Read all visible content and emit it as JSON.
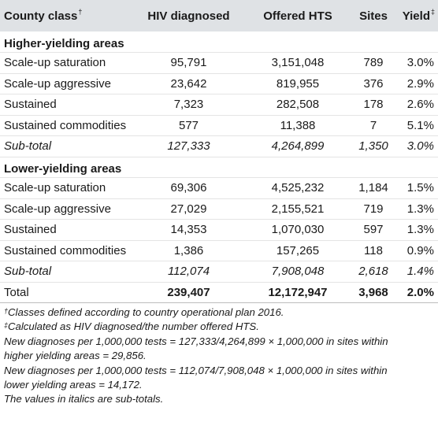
{
  "table": {
    "columns": [
      "County class",
      "HIV diagnosed",
      "Offered HTS",
      "Sites",
      "Yield"
    ],
    "column_marks": {
      "county_class": "†",
      "yield": "‡"
    },
    "sections": [
      {
        "title": "Higher-yielding areas",
        "rows": [
          {
            "name": "Scale-up saturation",
            "hiv": "95,791",
            "hts": "3,151,048",
            "sites": "789",
            "yield": "3.0%"
          },
          {
            "name": "Scale-up aggressive",
            "hiv": "23,642",
            "hts": "819,955",
            "sites": "376",
            "yield": "2.9%"
          },
          {
            "name": "Sustained",
            "hiv": "7,323",
            "hts": "282,508",
            "sites": "178",
            "yield": "2.6%"
          },
          {
            "name": "Sustained commodities",
            "hiv": "577",
            "hts": "11,388",
            "sites": "7",
            "yield": "5.1%"
          }
        ],
        "subtotal": {
          "name": "Sub-total",
          "hiv": "127,333",
          "hts": "4,264,899",
          "sites": "1,350",
          "yield": "3.0%"
        }
      },
      {
        "title": "Lower-yielding areas",
        "rows": [
          {
            "name": "Scale-up saturation",
            "hiv": "69,306",
            "hts": "4,525,232",
            "sites": "1,184",
            "yield": "1.5%"
          },
          {
            "name": "Scale-up aggressive",
            "hiv": "27,029",
            "hts": "2,155,521",
            "sites": "719",
            "yield": "1.3%"
          },
          {
            "name": "Sustained",
            "hiv": "14,353",
            "hts": "1,070,030",
            "sites": "597",
            "yield": "1.3%"
          },
          {
            "name": "Sustained commodities",
            "hiv": "1,386",
            "hts": "157,265",
            "sites": "118",
            "yield": "0.9%"
          }
        ],
        "subtotal": {
          "name": "Sub-total",
          "hiv": "112,074",
          "hts": "7,908,048",
          "sites": "2,618",
          "yield": "1.4%"
        }
      }
    ],
    "total": {
      "name": "Total",
      "hiv": "239,407",
      "hts": "12,172,947",
      "sites": "3,968",
      "yield": "2.0%"
    }
  },
  "notes": {
    "note1_mark": "†",
    "note1_text": "Classes defined according to country operational plan 2016.",
    "note2_mark": "‡",
    "note2_text": "Calculated as HIV diagnosed/the number offered HTS.",
    "note3_line1": "New diagnoses per 1,000,000 tests = 127,333/4,264,899 × 1,000,000 in sites within",
    "note3_line2": "higher yielding areas = 29,856.",
    "note4_line1": "New diagnoses per 1,000,000 tests = 112,074/7,908,048 × 1,000,000 in sites within",
    "note4_line2": "lower yielding areas = 14,172.",
    "note5": "The values in italics are sub-totals."
  }
}
